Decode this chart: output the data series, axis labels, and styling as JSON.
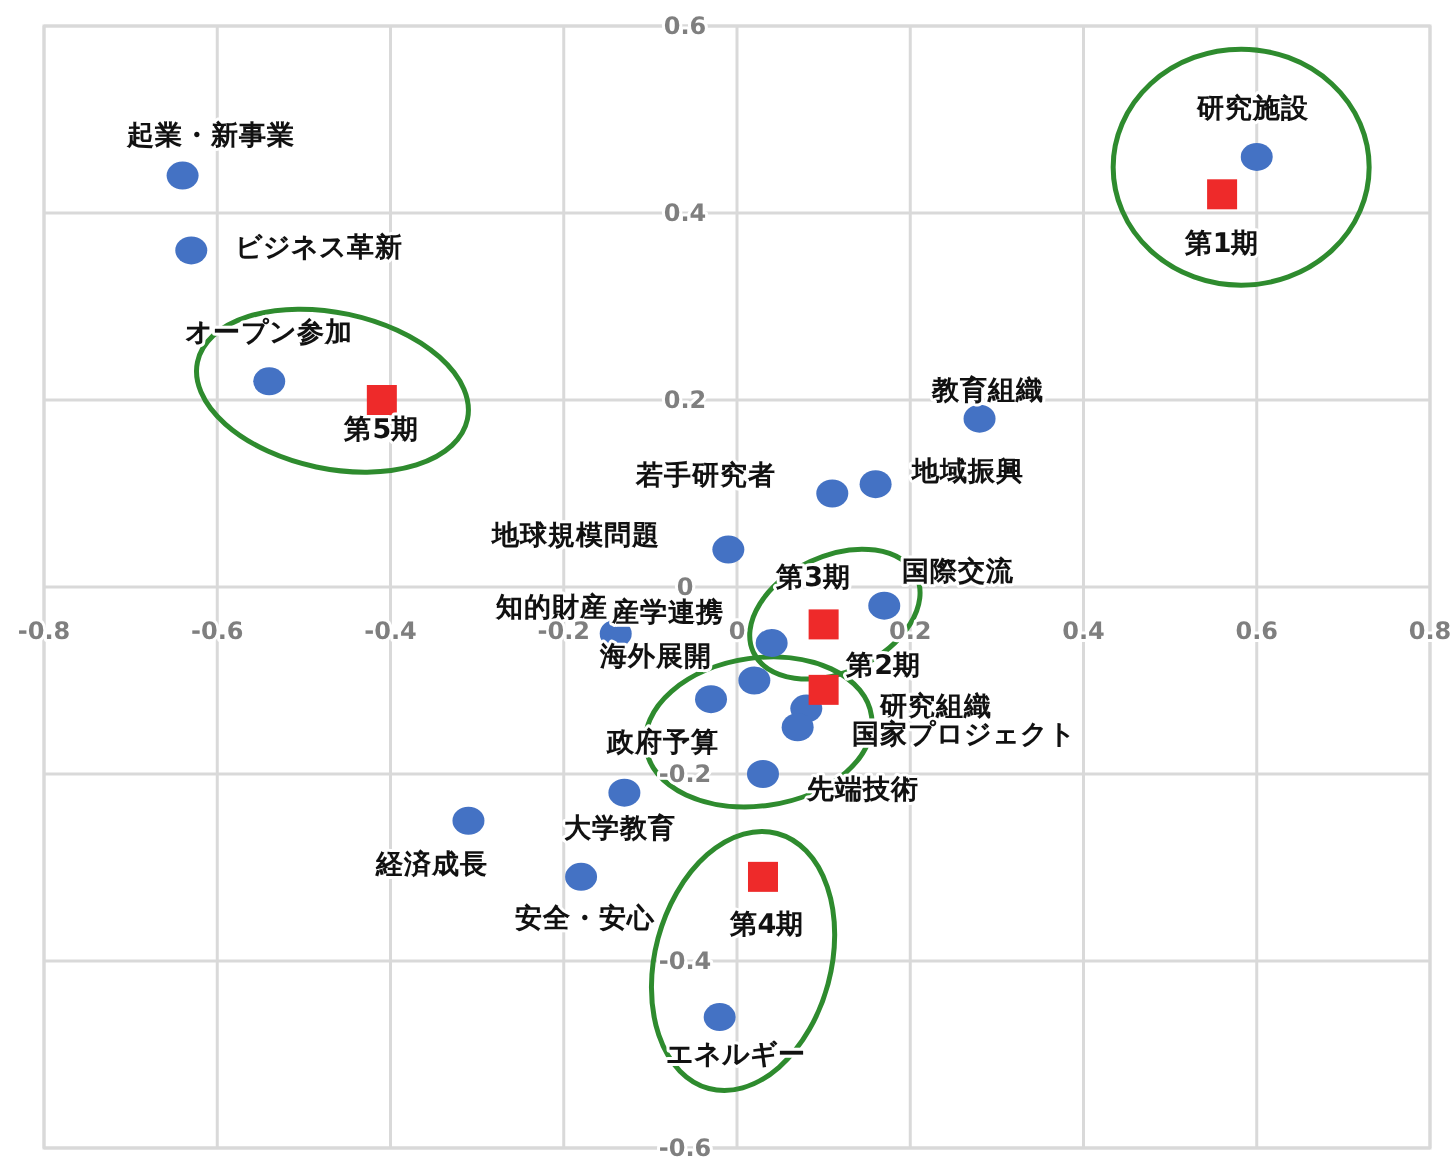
{
  "chart_data": {
    "type": "scatter",
    "xlim": [
      -0.8,
      0.8
    ],
    "ylim": [
      -0.6,
      0.6
    ],
    "xticks": [
      -0.8,
      -0.6,
      -0.4,
      -0.2,
      0,
      0.2,
      0.4,
      0.6,
      0.8
    ],
    "yticks": [
      -0.6,
      -0.4,
      -0.2,
      0,
      0.2,
      0.4,
      0.6
    ],
    "grid": true,
    "series": [
      {
        "color": "#4472c4",
        "marker": "circle",
        "x": [
          -0.64,
          -0.63,
          -0.54,
          0.6,
          0.28,
          0.11,
          0.16,
          -0.01,
          0.17,
          -0.14,
          0.04,
          0.02,
          -0.03,
          0.08,
          0.07,
          0.03,
          -0.13,
          -0.31,
          -0.18,
          -0.02
        ],
        "values": [
          0.44,
          0.36,
          0.22,
          0.46,
          0.18,
          0.1,
          0.11,
          0.04,
          -0.02,
          -0.05,
          -0.06,
          -0.1,
          -0.12,
          -0.13,
          -0.15,
          -0.2,
          -0.22,
          -0.25,
          -0.31,
          -0.46
        ]
      },
      {
        "color": "#ee2a2a",
        "marker": "square",
        "x": [
          0.56,
          0.1,
          0.1,
          0.03,
          -0.41
        ],
        "values": [
          0.42,
          -0.11,
          -0.04,
          -0.31,
          0.2
        ]
      }
    ],
    "annotations": [
      {
        "text": "起業・新事業",
        "x": -0.64,
        "y": 0.44
      },
      {
        "text": "ビジネス革新",
        "x": -0.63,
        "y": 0.36
      },
      {
        "text": "オープン参加",
        "x": -0.54,
        "y": 0.22
      },
      {
        "text": "研究施設",
        "x": 0.6,
        "y": 0.46
      },
      {
        "text": "教育組織",
        "x": 0.28,
        "y": 0.18
      },
      {
        "text": "若手研究者",
        "x": 0.11,
        "y": 0.1
      },
      {
        "text": "地域振興",
        "x": 0.16,
        "y": 0.11
      },
      {
        "text": "地球規模問題",
        "x": -0.01,
        "y": 0.04
      },
      {
        "text": "国際交流",
        "x": 0.17,
        "y": -0.02
      },
      {
        "text": "知的財産",
        "x": -0.14,
        "y": -0.05
      },
      {
        "text": "産学連携",
        "x": 0.04,
        "y": -0.06
      },
      {
        "text": "海外展開",
        "x": 0.02,
        "y": -0.1
      },
      {
        "text": "政府予算",
        "x": -0.03,
        "y": -0.12
      },
      {
        "text": "研究組織",
        "x": 0.08,
        "y": -0.13
      },
      {
        "text": "国家プロジェクト",
        "x": 0.07,
        "y": -0.15
      },
      {
        "text": "先端技術",
        "x": 0.03,
        "y": -0.2
      },
      {
        "text": "大学教育",
        "x": -0.13,
        "y": -0.22
      },
      {
        "text": "経済成長",
        "x": -0.31,
        "y": -0.25
      },
      {
        "text": "安全・安心",
        "x": -0.18,
        "y": -0.31
      },
      {
        "text": "エネルギー",
        "x": -0.02,
        "y": -0.46
      },
      {
        "text": "第1期",
        "x": 0.56,
        "y": 0.42
      },
      {
        "text": "第2期",
        "x": 0.1,
        "y": -0.11
      },
      {
        "text": "第3期",
        "x": 0.1,
        "y": -0.04
      },
      {
        "text": "第4期",
        "x": 0.03,
        "y": -0.31
      },
      {
        "text": "第5期",
        "x": -0.41,
        "y": 0.2
      }
    ]
  }
}
